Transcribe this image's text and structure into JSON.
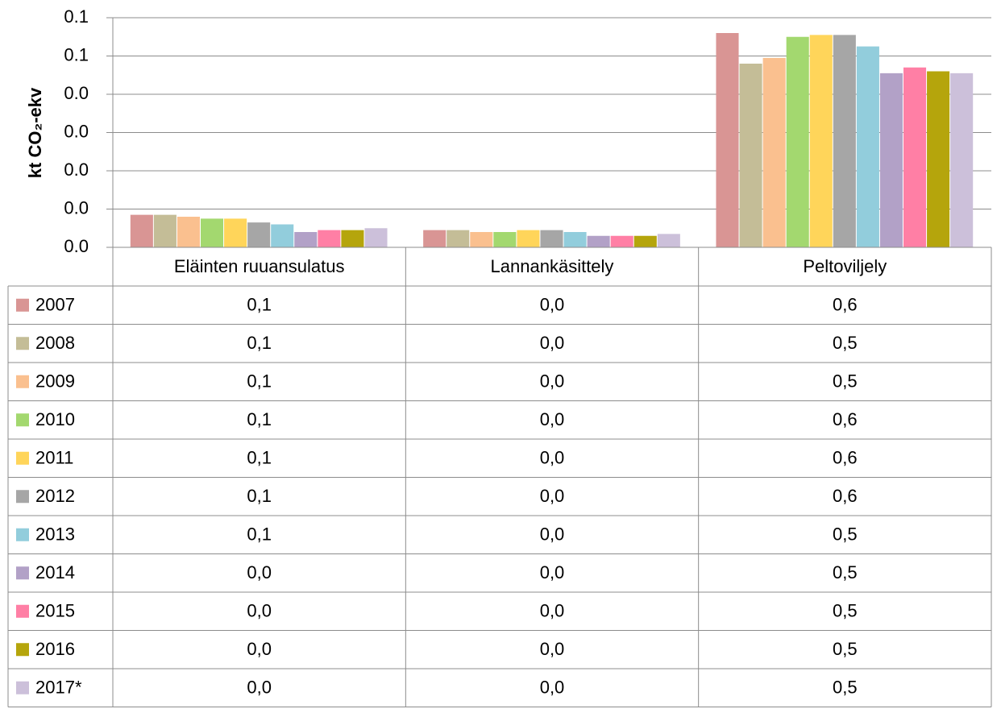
{
  "chart_data": {
    "type": "bar",
    "ylabel": "kt CO₂-ekv",
    "categories": [
      "Eläinten ruuansulatus",
      "Lannankäsittely",
      "Peltoviljely"
    ],
    "ylim": [
      0,
      0.12
    ],
    "yticks": [
      {
        "value": 0,
        "label": "0.0"
      },
      {
        "value": 0.02,
        "label": "0.0"
      },
      {
        "value": 0.04,
        "label": "0.0"
      },
      {
        "value": 0.06,
        "label": "0.0"
      },
      {
        "value": 0.08,
        "label": "0.0"
      },
      {
        "value": 0.1,
        "label": "0.1"
      },
      {
        "value": 0.12,
        "label": "0.1"
      }
    ],
    "grid": true,
    "series": [
      {
        "name": "2007",
        "color": "#d99594",
        "values": [
          0.017,
          0.009,
          0.112
        ]
      },
      {
        "name": "2008",
        "color": "#c4bd97",
        "values": [
          0.017,
          0.009,
          0.096
        ]
      },
      {
        "name": "2009",
        "color": "#fac08f",
        "values": [
          0.016,
          0.008,
          0.099
        ]
      },
      {
        "name": "2010",
        "color": "#a3d86f",
        "values": [
          0.015,
          0.008,
          0.11
        ]
      },
      {
        "name": "2011",
        "color": "#ffd55a",
        "values": [
          0.015,
          0.009,
          0.111
        ]
      },
      {
        "name": "2012",
        "color": "#a6a6a6",
        "values": [
          0.013,
          0.009,
          0.111
        ]
      },
      {
        "name": "2013",
        "color": "#92cddc",
        "values": [
          0.012,
          0.008,
          0.105
        ]
      },
      {
        "name": "2014",
        "color": "#b2a1c7",
        "values": [
          0.008,
          0.006,
          0.091
        ]
      },
      {
        "name": "2015",
        "color": "#ff7fa5",
        "values": [
          0.009,
          0.006,
          0.094
        ]
      },
      {
        "name": "2016",
        "color": "#b5a50c",
        "values": [
          0.009,
          0.006,
          0.092
        ]
      },
      {
        "name": "2017*",
        "color": "#ccc0da",
        "values": [
          0.01,
          0.007,
          0.091
        ]
      }
    ],
    "data_table": {
      "rows": [
        [
          "0,1",
          "0,0",
          "0,6"
        ],
        [
          "0,1",
          "0,0",
          "0,5"
        ],
        [
          "0,1",
          "0,0",
          "0,5"
        ],
        [
          "0,1",
          "0,0",
          "0,6"
        ],
        [
          "0,1",
          "0,0",
          "0,6"
        ],
        [
          "0,1",
          "0,0",
          "0,6"
        ],
        [
          "0,1",
          "0,0",
          "0,5"
        ],
        [
          "0,0",
          "0,0",
          "0,5"
        ],
        [
          "0,0",
          "0,0",
          "0,5"
        ],
        [
          "0,0",
          "0,0",
          "0,5"
        ],
        [
          "0,0",
          "0,0",
          "0,5"
        ]
      ]
    }
  }
}
